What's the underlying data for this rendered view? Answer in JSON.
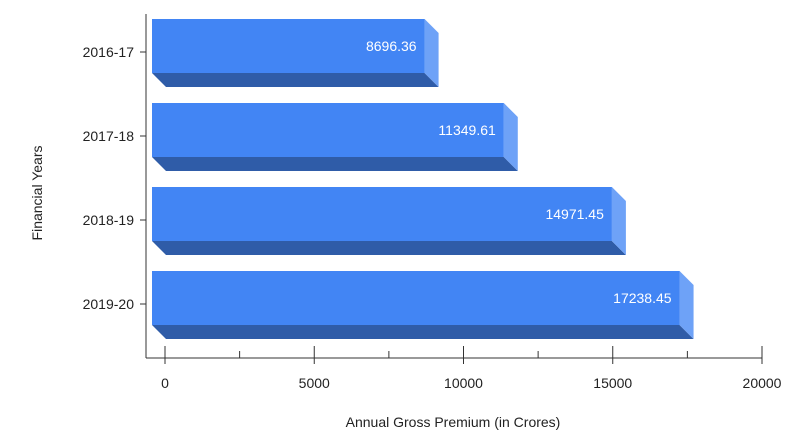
{
  "chart_data": {
    "type": "bar",
    "orientation": "horizontal",
    "style": "3d",
    "categories": [
      "2016-17",
      "2017-18",
      "2018-19",
      "2019-20"
    ],
    "values": [
      8696.36,
      11349.61,
      14971.45,
      17238.45
    ],
    "data_labels": [
      "8696.36",
      "11349.61",
      "14971.45",
      "17238.45"
    ],
    "xlabel": "Annual Gross Premium (in Crores)",
    "ylabel": "Financial Years",
    "xlim": [
      0,
      20000
    ],
    "xticks": [
      "0",
      "5000",
      "10000",
      "15000",
      "20000"
    ],
    "grid": false,
    "legend": "none",
    "colors": {
      "bar_front": "#4285f4",
      "bar_top": "#2f5ca8",
      "bar_side": "#6ea2f7",
      "axis": "#333333"
    }
  }
}
